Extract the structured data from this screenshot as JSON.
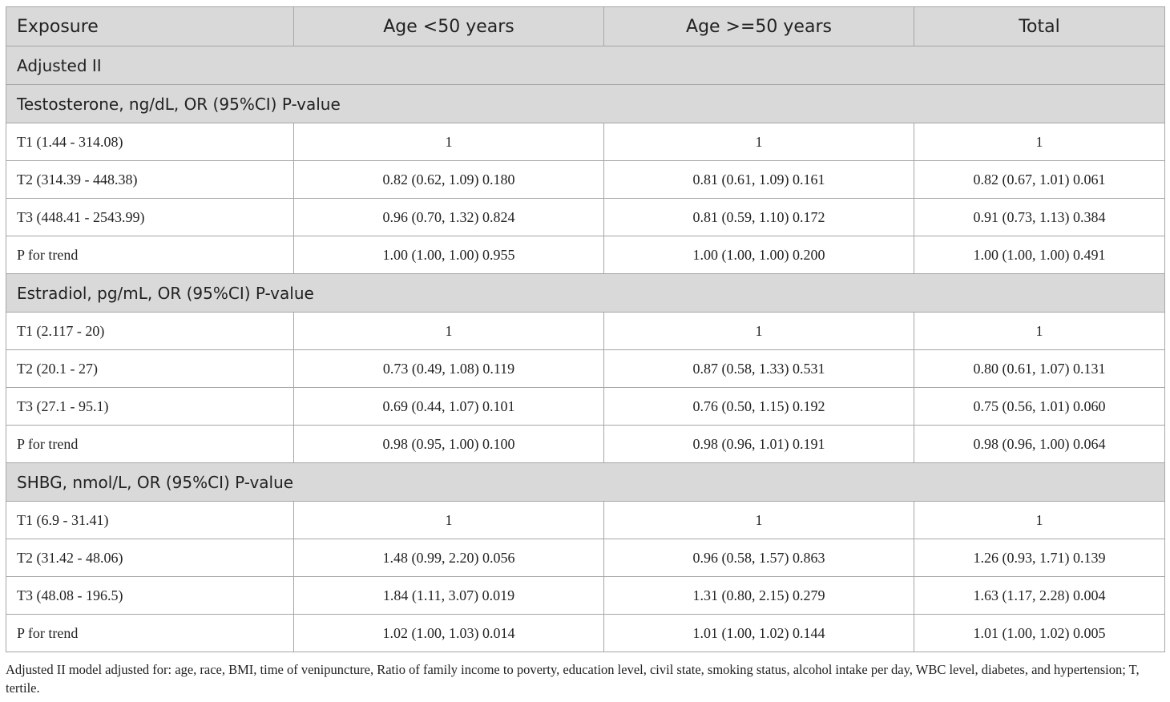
{
  "table": {
    "headers": [
      "Exposure",
      "Age <50 years",
      "Age >=50 years",
      "Total"
    ],
    "model_label": "Adjusted II",
    "sections": [
      {
        "title": "Testosterone, ng/dL, OR (95%CI) P-value",
        "rows": [
          [
            "T1 (1.44 - 314.08)",
            "1",
            "1",
            "1"
          ],
          [
            "T2 (314.39 - 448.38)",
            "0.82 (0.62, 1.09) 0.180",
            "0.81 (0.61, 1.09) 0.161",
            "0.82 (0.67, 1.01) 0.061"
          ],
          [
            "T3 (448.41 - 2543.99)",
            "0.96 (0.70, 1.32) 0.824",
            "0.81 (0.59, 1.10) 0.172",
            "0.91 (0.73, 1.13) 0.384"
          ],
          [
            "P for trend",
            "1.00 (1.00, 1.00) 0.955",
            "1.00 (1.00, 1.00) 0.200",
            "1.00 (1.00, 1.00) 0.491"
          ]
        ]
      },
      {
        "title": "Estradiol, pg/mL, OR (95%CI) P-value",
        "rows": [
          [
            "T1 (2.117 - 20)",
            "1",
            "1",
            "1"
          ],
          [
            "T2 (20.1 - 27)",
            "0.73 (0.49, 1.08) 0.119",
            "0.87 (0.58, 1.33) 0.531",
            "0.80 (0.61, 1.07) 0.131"
          ],
          [
            "T3 (27.1 - 95.1)",
            "0.69 (0.44, 1.07) 0.101",
            "0.76 (0.50, 1.15) 0.192",
            "0.75 (0.56, 1.01) 0.060"
          ],
          [
            "P for trend",
            "0.98 (0.95, 1.00) 0.100",
            "0.98 (0.96, 1.01) 0.191",
            "0.98 (0.96, 1.00) 0.064"
          ]
        ]
      },
      {
        "title": "SHBG, nmol/L, OR (95%CI) P-value",
        "rows": [
          [
            "T1 (6.9 - 31.41)",
            "1",
            "1",
            "1"
          ],
          [
            "T2 (31.42 - 48.06)",
            "1.48 (0.99, 2.20) 0.056",
            "0.96 (0.58, 1.57) 0.863",
            "1.26 (0.93, 1.71) 0.139"
          ],
          [
            "T3 (48.08 - 196.5)",
            "1.84 (1.11, 3.07) 0.019",
            "1.31 (0.80, 2.15) 0.279",
            "1.63 (1.17, 2.28) 0.004"
          ],
          [
            "P for trend",
            "1.02 (1.00, 1.03) 0.014",
            "1.01 (1.00, 1.02) 0.144",
            "1.01 (1.00, 1.02) 0.005"
          ]
        ]
      }
    ]
  },
  "footnote": "Adjusted II model adjusted for: age, race, BMI, time of venipuncture, Ratio of family income to poverty, education level, civil state, smoking status, alcohol intake per day, WBC level, diabetes, and hypertension; T, tertile."
}
